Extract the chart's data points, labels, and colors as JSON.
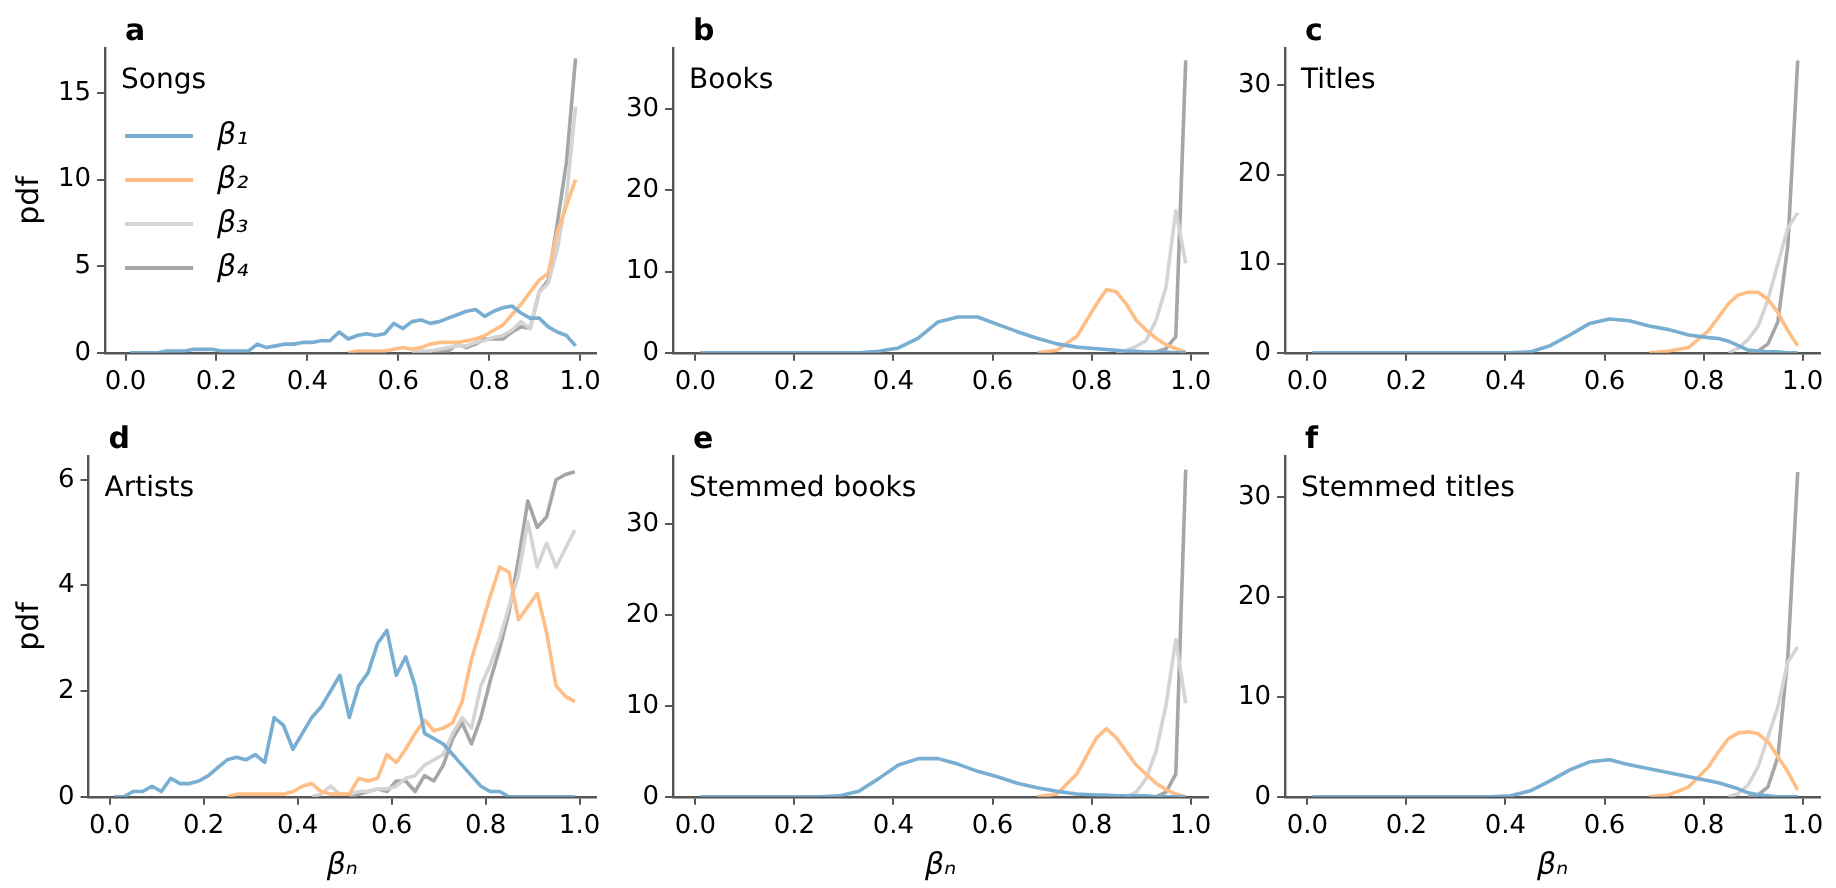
{
  "chart_data": [
    {
      "type": "line",
      "title": "a",
      "ylabel": "pdf",
      "annotations": [
        "Songs"
      ],
      "legend": "left",
      "xlim": [
        -0.045,
        1.035
      ],
      "xticks": [
        {
          "value": 0,
          "label": "0.0"
        },
        {
          "value": 0.2,
          "label": "0.2"
        },
        {
          "value": 0.4,
          "label": "0.4"
        },
        {
          "value": 0.6,
          "label": "0.6"
        },
        {
          "value": 0.8,
          "label": "0.8"
        },
        {
          "value": 1,
          "label": "1.0"
        }
      ],
      "ylim": [
        0,
        17.6
      ],
      "yticks": [
        0,
        5,
        10,
        15
      ],
      "grid": false,
      "x": [
        0.01,
        0.03,
        0.05,
        0.07,
        0.09,
        0.11,
        0.13,
        0.15,
        0.17,
        0.19,
        0.21,
        0.23,
        0.25,
        0.27,
        0.29,
        0.31,
        0.33,
        0.35,
        0.37,
        0.39,
        0.41,
        0.43,
        0.45,
        0.47,
        0.49,
        0.51,
        0.53,
        0.55,
        0.57,
        0.59,
        0.61,
        0.63,
        0.65,
        0.67,
        0.69,
        0.71,
        0.73,
        0.75,
        0.77,
        0.79,
        0.81,
        0.83,
        0.85,
        0.87,
        0.89,
        0.91,
        0.93,
        0.95,
        0.97,
        0.99
      ],
      "series": [
        {
          "name": "β₁",
          "color": "#78aed2",
          "values": [
            0,
            0,
            0,
            0,
            0.1,
            0.1,
            0.1,
            0.2,
            0.2,
            0.2,
            0.1,
            0.1,
            0.1,
            0.1,
            0.5,
            0.3,
            0.4,
            0.5,
            0.5,
            0.6,
            0.6,
            0.7,
            0.7,
            1.2,
            0.8,
            1.0,
            1.1,
            1.0,
            1.1,
            1.7,
            1.4,
            1.8,
            1.9,
            1.7,
            1.8,
            2.0,
            2.2,
            2.4,
            2.5,
            2.1,
            2.4,
            2.6,
            2.7,
            2.3,
            2.0,
            2.0,
            1.5,
            1.2,
            1.0,
            0.4
          ]
        },
        {
          "name": "β₂",
          "color": "#ffbe86",
          "values": [
            null,
            null,
            null,
            null,
            null,
            null,
            null,
            null,
            null,
            null,
            null,
            null,
            null,
            null,
            null,
            null,
            null,
            null,
            null,
            null,
            null,
            null,
            null,
            null,
            0,
            0.1,
            0.1,
            0.1,
            0.1,
            0.2,
            0.3,
            0.2,
            0.3,
            0.5,
            0.6,
            0.6,
            0.6,
            0.7,
            0.8,
            1.0,
            1.3,
            1.6,
            2.2,
            2.8,
            3.5,
            4.2,
            4.6,
            7.0,
            8.5,
            10
          ]
        },
        {
          "name": "β₃",
          "color": "#d4d4d4",
          "values": [
            null,
            null,
            null,
            null,
            null,
            null,
            null,
            null,
            null,
            null,
            null,
            null,
            null,
            null,
            null,
            null,
            null,
            null,
            null,
            null,
            null,
            null,
            null,
            null,
            null,
            null,
            null,
            null,
            null,
            null,
            null,
            0,
            0.1,
            0.1,
            0.2,
            0.3,
            0.4,
            0.4,
            0.6,
            0.7,
            0.9,
            1.0,
            1.3,
            1.8,
            1.4,
            3.5,
            4.0,
            6.0,
            9.0,
            14.2
          ]
        },
        {
          "name": "β₄",
          "color": "#a6a6a6",
          "values": [
            null,
            null,
            null,
            null,
            null,
            null,
            null,
            null,
            null,
            null,
            null,
            null,
            null,
            null,
            null,
            null,
            null,
            null,
            null,
            null,
            null,
            null,
            null,
            null,
            null,
            null,
            null,
            null,
            null,
            null,
            null,
            null,
            0,
            0.1,
            0.1,
            0.1,
            0.5,
            0.3,
            0.5,
            0.8,
            0.8,
            0.8,
            1.2,
            1.5,
            1.4,
            3.5,
            4.2,
            7.5,
            11,
            17
          ]
        }
      ]
    },
    {
      "type": "line",
      "title": "b",
      "annotations": [
        "Books"
      ],
      "xlim": [
        -0.045,
        1.035
      ],
      "xticks": [
        {
          "value": 0,
          "label": "0.0"
        },
        {
          "value": 0.2,
          "label": "0.2"
        },
        {
          "value": 0.4,
          "label": "0.4"
        },
        {
          "value": 0.6,
          "label": "0.6"
        },
        {
          "value": 0.8,
          "label": "0.8"
        },
        {
          "value": 1,
          "label": "1.0"
        }
      ],
      "ylim": [
        0,
        37.5
      ],
      "yticks": [
        0,
        10,
        20,
        30
      ],
      "grid": false,
      "x": [
        0.01,
        0.05,
        0.09,
        0.13,
        0.17,
        0.21,
        0.25,
        0.29,
        0.33,
        0.37,
        0.41,
        0.45,
        0.49,
        0.53,
        0.57,
        0.61,
        0.65,
        0.69,
        0.73,
        0.77,
        0.81,
        0.83,
        0.85,
        0.87,
        0.89,
        0.91,
        0.93,
        0.95,
        0.97,
        0.99
      ],
      "series": [
        {
          "color": "#78aed2",
          "values": [
            0,
            0,
            0,
            0,
            0,
            0,
            0,
            0,
            0,
            0.2,
            0.6,
            1.8,
            3.8,
            4.4,
            4.4,
            3.5,
            2.6,
            1.8,
            1.1,
            0.7,
            0.5,
            0.4,
            0.3,
            0.2,
            0.2,
            0.1,
            0.1,
            0.1,
            0,
            0
          ]
        },
        {
          "color": "#ffbe86",
          "values": [
            null,
            null,
            null,
            null,
            null,
            null,
            null,
            null,
            null,
            null,
            null,
            null,
            null,
            null,
            null,
            null,
            null,
            0,
            0.3,
            2.0,
            6.0,
            7.8,
            7.5,
            6.0,
            4.0,
            2.8,
            1.8,
            1.0,
            0.5,
            0.1
          ]
        },
        {
          "color": "#d4d4d4",
          "values": [
            null,
            null,
            null,
            null,
            null,
            null,
            null,
            null,
            null,
            null,
            null,
            null,
            null,
            null,
            null,
            null,
            null,
            null,
            null,
            null,
            null,
            null,
            0,
            0.3,
            0.8,
            1.5,
            4,
            8,
            17.5,
            11
          ]
        },
        {
          "color": "#a6a6a6",
          "values": [
            null,
            null,
            null,
            null,
            null,
            null,
            null,
            null,
            null,
            null,
            null,
            null,
            null,
            null,
            null,
            null,
            null,
            null,
            null,
            null,
            null,
            null,
            null,
            null,
            null,
            0,
            0.1,
            0.5,
            2,
            36
          ]
        }
      ]
    },
    {
      "type": "line",
      "title": "c",
      "annotations": [
        "Titles"
      ],
      "xlim": [
        -0.045,
        1.035
      ],
      "xticks": [
        {
          "value": 0,
          "label": "0.0"
        },
        {
          "value": 0.2,
          "label": "0.2"
        },
        {
          "value": 0.4,
          "label": "0.4"
        },
        {
          "value": 0.6,
          "label": "0.6"
        },
        {
          "value": 0.8,
          "label": "0.8"
        },
        {
          "value": 1,
          "label": "1.0"
        }
      ],
      "ylim": [
        0,
        34.2
      ],
      "yticks": [
        0,
        10,
        20,
        30
      ],
      "grid": false,
      "x": [
        0.01,
        0.05,
        0.09,
        0.13,
        0.17,
        0.21,
        0.25,
        0.29,
        0.33,
        0.37,
        0.41,
        0.45,
        0.49,
        0.53,
        0.57,
        0.61,
        0.65,
        0.69,
        0.73,
        0.77,
        0.81,
        0.83,
        0.85,
        0.87,
        0.89,
        0.91,
        0.93,
        0.95,
        0.97,
        0.99
      ],
      "series": [
        {
          "color": "#78aed2",
          "values": [
            0,
            0,
            0,
            0,
            0,
            0,
            0,
            0,
            0,
            0,
            0,
            0.1,
            0.8,
            2.0,
            3.3,
            3.8,
            3.6,
            3.0,
            2.6,
            2.0,
            1.7,
            1.6,
            1.3,
            0.8,
            0.3,
            0.2,
            0.1,
            0.1,
            0,
            0
          ]
        },
        {
          "color": "#ffbe86",
          "values": [
            null,
            null,
            null,
            null,
            null,
            null,
            null,
            null,
            null,
            null,
            null,
            null,
            null,
            null,
            null,
            null,
            null,
            0,
            0.2,
            0.6,
            2.5,
            4.0,
            5.5,
            6.5,
            6.8,
            6.8,
            6.0,
            4.5,
            2.5,
            0.8
          ]
        },
        {
          "color": "#d4d4d4",
          "values": [
            null,
            null,
            null,
            null,
            null,
            null,
            null,
            null,
            null,
            null,
            null,
            null,
            null,
            null,
            null,
            null,
            null,
            null,
            null,
            null,
            null,
            null,
            0,
            0.5,
            1.5,
            3.0,
            6,
            10,
            14,
            15.7
          ]
        },
        {
          "color": "#a6a6a6",
          "values": [
            null,
            null,
            null,
            null,
            null,
            null,
            null,
            null,
            null,
            null,
            null,
            null,
            null,
            null,
            null,
            null,
            null,
            null,
            null,
            null,
            null,
            null,
            null,
            null,
            0,
            0.2,
            1.0,
            3.5,
            12,
            32.8
          ]
        }
      ]
    },
    {
      "type": "line",
      "title": "d",
      "ylabel": "pdf",
      "xlabel": "βₙ",
      "annotations": [
        "Artists"
      ],
      "xlim": [
        -0.045,
        1.035
      ],
      "xticks": [
        {
          "value": 0,
          "label": "0.0"
        },
        {
          "value": 0.2,
          "label": "0.2"
        },
        {
          "value": 0.4,
          "label": "0.4"
        },
        {
          "value": 0.6,
          "label": "0.6"
        },
        {
          "value": 0.8,
          "label": "0.8"
        },
        {
          "value": 1,
          "label": "1.0"
        }
      ],
      "ylim": [
        0,
        6.45
      ],
      "yticks": [
        0,
        2,
        4,
        6
      ],
      "grid": false,
      "x": [
        0.01,
        0.03,
        0.05,
        0.07,
        0.09,
        0.11,
        0.13,
        0.15,
        0.17,
        0.19,
        0.21,
        0.23,
        0.25,
        0.27,
        0.29,
        0.31,
        0.33,
        0.35,
        0.37,
        0.39,
        0.41,
        0.43,
        0.45,
        0.47,
        0.49,
        0.51,
        0.53,
        0.55,
        0.57,
        0.59,
        0.61,
        0.63,
        0.65,
        0.67,
        0.69,
        0.71,
        0.73,
        0.75,
        0.77,
        0.79,
        0.81,
        0.83,
        0.85,
        0.87,
        0.89,
        0.91,
        0.93,
        0.95,
        0.97,
        0.99
      ],
      "series": [
        {
          "color": "#78aed2",
          "values": [
            0,
            0,
            0.1,
            0.1,
            0.2,
            0.1,
            0.35,
            0.25,
            0.25,
            0.3,
            0.4,
            0.55,
            0.7,
            0.75,
            0.7,
            0.8,
            0.65,
            1.5,
            1.35,
            0.9,
            1.2,
            1.5,
            1.7,
            2.0,
            2.3,
            1.5,
            2.1,
            2.35,
            2.9,
            3.15,
            2.3,
            2.65,
            2.1,
            1.2,
            1.1,
            1.0,
            0.8,
            0.6,
            0.4,
            0.2,
            0.1,
            0.1,
            0,
            0,
            0,
            0,
            0,
            0,
            0,
            0
          ]
        },
        {
          "color": "#ffbe86",
          "values": [
            null,
            null,
            null,
            null,
            null,
            null,
            null,
            null,
            null,
            null,
            null,
            null,
            0,
            0.05,
            0.05,
            0.05,
            0.05,
            0.05,
            0.05,
            0.1,
            0.2,
            0.25,
            0.1,
            0.05,
            0.05,
            0.05,
            0.35,
            0.3,
            0.35,
            0.8,
            0.65,
            0.9,
            1.2,
            1.45,
            1.25,
            1.3,
            1.4,
            1.8,
            2.6,
            3.2,
            3.8,
            4.35,
            4.25,
            3.35,
            3.6,
            3.85,
            3.1,
            2.1,
            1.9,
            1.8
          ]
        },
        {
          "color": "#d4d4d4",
          "values": [
            null,
            null,
            null,
            null,
            null,
            null,
            null,
            null,
            null,
            null,
            null,
            null,
            null,
            null,
            null,
            null,
            null,
            null,
            null,
            null,
            null,
            0,
            0.05,
            0.2,
            0.05,
            0.05,
            0.1,
            0.1,
            0.15,
            0.15,
            0.2,
            0.35,
            0.4,
            0.6,
            0.7,
            0.8,
            1.2,
            1.5,
            1.3,
            2.1,
            2.5,
            3.0,
            3.6,
            4.2,
            5.2,
            4.35,
            4.8,
            4.35,
            4.7,
            5.05
          ]
        },
        {
          "color": "#a6a6a6",
          "values": [
            null,
            null,
            null,
            null,
            null,
            null,
            null,
            null,
            null,
            null,
            null,
            null,
            null,
            null,
            null,
            null,
            null,
            null,
            null,
            null,
            null,
            null,
            null,
            null,
            null,
            0,
            0.05,
            0.1,
            0.15,
            0.1,
            0.3,
            0.3,
            0.1,
            0.4,
            0.3,
            0.6,
            1.1,
            1.4,
            1.0,
            1.5,
            2.2,
            2.8,
            3.5,
            4.5,
            5.6,
            5.1,
            5.3,
            6.0,
            6.1,
            6.15
          ]
        }
      ]
    },
    {
      "type": "line",
      "title": "e",
      "xlabel": "βₙ",
      "annotations": [
        "Stemmed books"
      ],
      "xlim": [
        -0.045,
        1.035
      ],
      "xticks": [
        {
          "value": 0,
          "label": "0.0"
        },
        {
          "value": 0.2,
          "label": "0.2"
        },
        {
          "value": 0.4,
          "label": "0.4"
        },
        {
          "value": 0.6,
          "label": "0.6"
        },
        {
          "value": 0.8,
          "label": "0.8"
        },
        {
          "value": 1,
          "label": "1.0"
        }
      ],
      "ylim": [
        0,
        37.5
      ],
      "yticks": [
        0,
        10,
        20,
        30
      ],
      "grid": false,
      "x": [
        0.01,
        0.05,
        0.09,
        0.13,
        0.17,
        0.21,
        0.25,
        0.29,
        0.33,
        0.37,
        0.41,
        0.45,
        0.49,
        0.53,
        0.57,
        0.61,
        0.65,
        0.69,
        0.73,
        0.77,
        0.81,
        0.83,
        0.85,
        0.87,
        0.89,
        0.91,
        0.93,
        0.95,
        0.97,
        0.99
      ],
      "series": [
        {
          "color": "#78aed2",
          "values": [
            0,
            0,
            0,
            0,
            0,
            0,
            0,
            0.1,
            0.6,
            2,
            3.5,
            4.2,
            4.2,
            3.6,
            2.8,
            2.2,
            1.5,
            1.0,
            0.6,
            0.3,
            0.2,
            0.2,
            0.1,
            0.1,
            0.1,
            0.1,
            0,
            0,
            0,
            0
          ]
        },
        {
          "color": "#ffbe86",
          "values": [
            null,
            null,
            null,
            null,
            null,
            null,
            null,
            null,
            null,
            null,
            null,
            null,
            null,
            null,
            null,
            null,
            null,
            0,
            0.3,
            2.5,
            6.5,
            7.5,
            6.5,
            5.0,
            3.5,
            2.5,
            1.5,
            0.8,
            0.3,
            0
          ]
        },
        {
          "color": "#d4d4d4",
          "values": [
            null,
            null,
            null,
            null,
            null,
            null,
            null,
            null,
            null,
            null,
            null,
            null,
            null,
            null,
            null,
            null,
            null,
            null,
            null,
            null,
            null,
            null,
            null,
            0,
            0.5,
            2,
            5,
            10,
            17.3,
            10.3
          ]
        },
        {
          "color": "#a6a6a6",
          "values": [
            null,
            null,
            null,
            null,
            null,
            null,
            null,
            null,
            null,
            null,
            null,
            null,
            null,
            null,
            null,
            null,
            null,
            null,
            null,
            null,
            null,
            null,
            null,
            null,
            null,
            null,
            0,
            0.5,
            2.5,
            36
          ]
        }
      ]
    },
    {
      "type": "line",
      "title": "f",
      "xlabel": "βₙ",
      "annotations": [
        "Stemmed titles"
      ],
      "xlim": [
        -0.045,
        1.035
      ],
      "xticks": [
        {
          "value": 0,
          "label": "0.0"
        },
        {
          "value": 0.2,
          "label": "0.2"
        },
        {
          "value": 0.4,
          "label": "0.4"
        },
        {
          "value": 0.6,
          "label": "0.6"
        },
        {
          "value": 0.8,
          "label": "0.8"
        },
        {
          "value": 1,
          "label": "1.0"
        }
      ],
      "ylim": [
        0,
        34.1
      ],
      "yticks": [
        0,
        10,
        20,
        30
      ],
      "grid": false,
      "x": [
        0.01,
        0.05,
        0.09,
        0.13,
        0.17,
        0.21,
        0.25,
        0.29,
        0.33,
        0.37,
        0.41,
        0.45,
        0.49,
        0.53,
        0.57,
        0.61,
        0.65,
        0.69,
        0.73,
        0.77,
        0.81,
        0.83,
        0.85,
        0.87,
        0.89,
        0.91,
        0.93,
        0.95,
        0.97,
        0.99
      ],
      "series": [
        {
          "color": "#78aed2",
          "values": [
            0,
            0,
            0,
            0,
            0,
            0,
            0,
            0,
            0,
            0,
            0.1,
            0.6,
            1.6,
            2.7,
            3.5,
            3.7,
            3.2,
            2.8,
            2.4,
            2.0,
            1.6,
            1.4,
            1.1,
            0.8,
            0.4,
            0.2,
            0.1,
            0,
            0,
            0
          ]
        },
        {
          "color": "#ffbe86",
          "values": [
            null,
            null,
            null,
            null,
            null,
            null,
            null,
            null,
            null,
            null,
            null,
            null,
            null,
            null,
            null,
            null,
            null,
            0,
            0.2,
            1.0,
            3.0,
            4.5,
            5.8,
            6.4,
            6.5,
            6.3,
            5.5,
            4.0,
            2.5,
            0.7
          ]
        },
        {
          "color": "#d4d4d4",
          "values": [
            null,
            null,
            null,
            null,
            null,
            null,
            null,
            null,
            null,
            null,
            null,
            null,
            null,
            null,
            null,
            null,
            null,
            null,
            null,
            null,
            null,
            null,
            0,
            0.3,
            1.2,
            3,
            6,
            9,
            13.5,
            15
          ]
        },
        {
          "color": "#a6a6a6",
          "values": [
            null,
            null,
            null,
            null,
            null,
            null,
            null,
            null,
            null,
            null,
            null,
            null,
            null,
            null,
            null,
            null,
            null,
            null,
            null,
            null,
            null,
            null,
            null,
            null,
            0,
            0.2,
            1.0,
            4,
            14,
            32.5
          ]
        }
      ]
    }
  ]
}
